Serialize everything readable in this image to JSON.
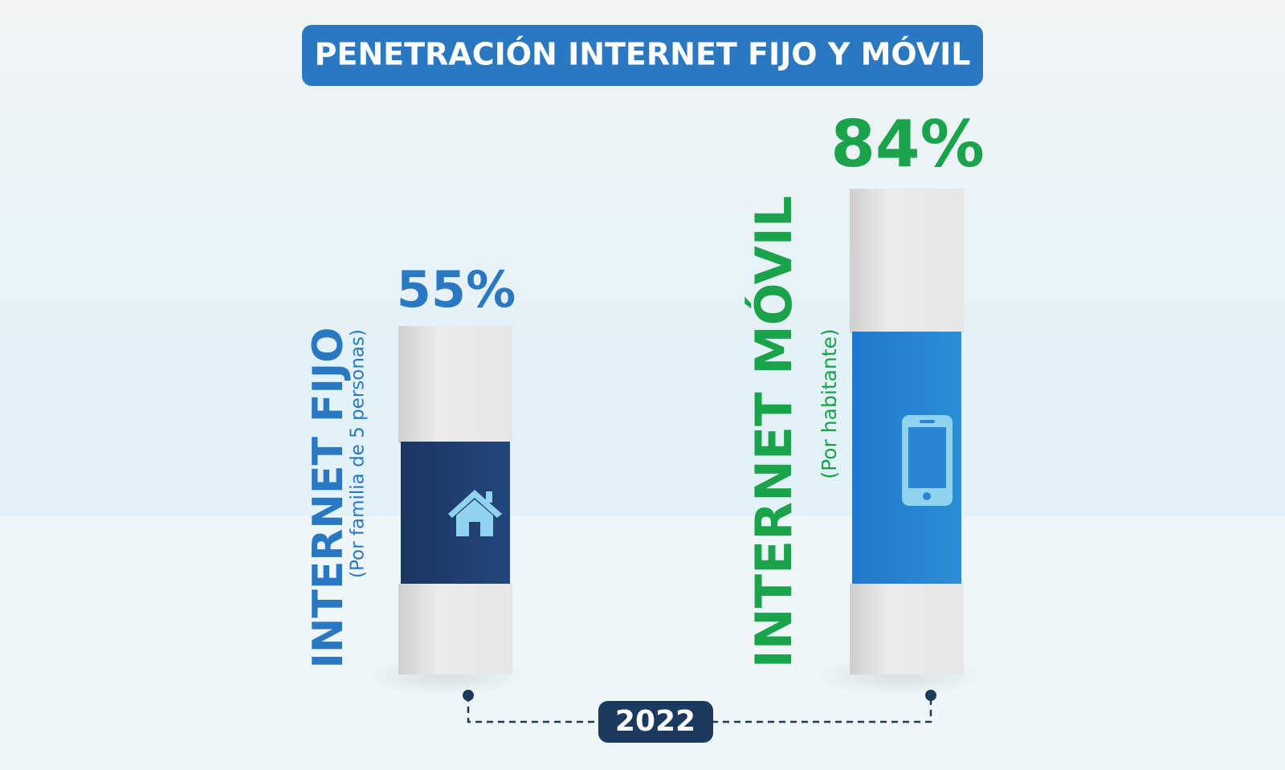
{
  "header": {
    "title": "PENETRACIÓN INTERNET FIJO Y MÓVIL"
  },
  "items": [
    {
      "value": "55%",
      "label": "INTERNET FIJO",
      "sublabel": "(Por familia de 5 personas)"
    },
    {
      "value": "84%",
      "label": "INTERNET MÓVIL",
      "sublabel": "(Por habitante)"
    }
  ],
  "year": "2022"
}
